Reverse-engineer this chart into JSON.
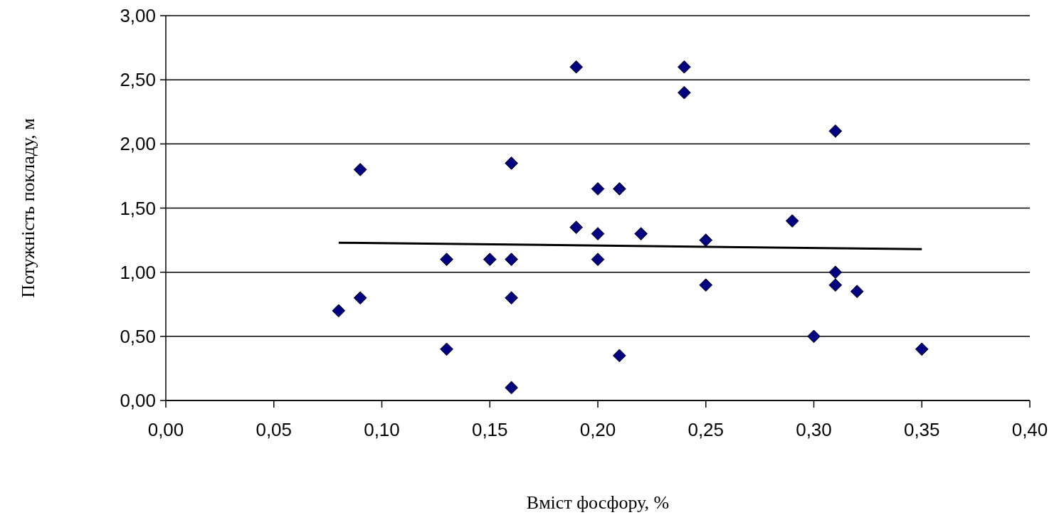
{
  "chart_data": {
    "type": "scatter",
    "xlabel": "Вміст фосфору, %",
    "ylabel": "Потужність покладу, м",
    "xlim": [
      0,
      0.4
    ],
    "ylim": [
      0,
      3
    ],
    "xticks": [
      {
        "value": 0,
        "label": "0,00"
      },
      {
        "value": 0.05,
        "label": "0,05"
      },
      {
        "value": 0.1,
        "label": "0,10"
      },
      {
        "value": 0.15,
        "label": "0,15"
      },
      {
        "value": 0.2,
        "label": "0,20"
      },
      {
        "value": 0.25,
        "label": "0,25"
      },
      {
        "value": 0.3,
        "label": "0,30"
      },
      {
        "value": 0.35,
        "label": "0,35"
      },
      {
        "value": 0.4,
        "label": "0,40"
      }
    ],
    "yticks": [
      {
        "value": 0,
        "label": "0,00"
      },
      {
        "value": 0.5,
        "label": "0,50"
      },
      {
        "value": 1,
        "label": "1,00"
      },
      {
        "value": 1.5,
        "label": "1,50"
      },
      {
        "value": 2,
        "label": "2,00"
      },
      {
        "value": 2.5,
        "label": "2,50"
      },
      {
        "value": 3,
        "label": "3,00"
      }
    ],
    "grid": "y",
    "series": [
      {
        "marker": "diamond",
        "color": "#000080",
        "x": [
          0.08,
          0.09,
          0.09,
          0.13,
          0.13,
          0.15,
          0.16,
          0.16,
          0.16,
          0.16,
          0.19,
          0.19,
          0.2,
          0.2,
          0.2,
          0.21,
          0.21,
          0.22,
          0.24,
          0.24,
          0.25,
          0.25,
          0.29,
          0.3,
          0.31,
          0.31,
          0.31,
          0.32,
          0.35
        ],
        "values": [
          0.7,
          1.8,
          0.8,
          0.4,
          1.1,
          1.1,
          1.1,
          1.85,
          0.8,
          0.1,
          2.6,
          1.35,
          1.65,
          1.3,
          1.1,
          1.65,
          0.35,
          1.3,
          2.6,
          2.4,
          1.25,
          0.9,
          1.4,
          0.5,
          2.1,
          1.0,
          0.9,
          0.85,
          0.4
        ]
      },
      {
        "type": "line",
        "marker": "none",
        "color": "#000000",
        "x": [
          0.08,
          0.35
        ],
        "values": [
          1.23,
          1.18
        ]
      }
    ]
  }
}
